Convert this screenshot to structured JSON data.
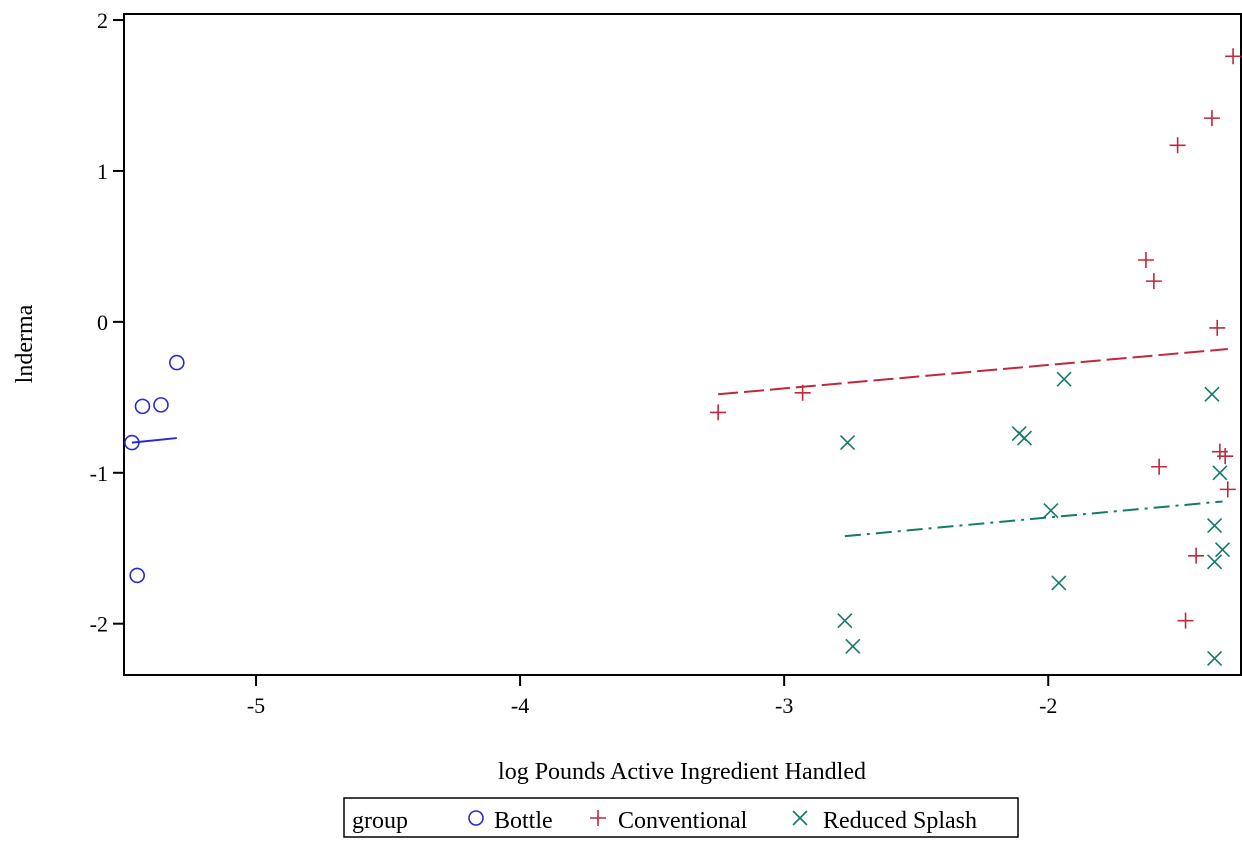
{
  "chart_data": {
    "type": "scatter",
    "title": "",
    "xlabel": "log Pounds Active Ingredient Handled",
    "ylabel": "lnderma",
    "xlim": [
      -5.5,
      -1.27
    ],
    "ylim": [
      -2.34,
      2.04
    ],
    "x_ticks": [
      -5,
      -4,
      -3,
      -2
    ],
    "y_ticks": [
      -2,
      -1,
      0,
      1,
      2
    ],
    "grid": false,
    "legend": {
      "title": "group",
      "placement": "bottom-center",
      "entries": [
        "Bottle",
        "Conventional",
        "Reduced Splash"
      ]
    },
    "series": [
      {
        "name": "Bottle",
        "marker": "circle",
        "color": "#2929d6",
        "points": [
          [
            -5.47,
            -0.8
          ],
          [
            -5.43,
            -0.56
          ],
          [
            -5.36,
            -0.55
          ],
          [
            -5.3,
            -0.27
          ],
          [
            -5.45,
            -1.68
          ]
        ],
        "fit_line": {
          "style": "solid",
          "x": [
            -5.47,
            -5.3
          ],
          "y": [
            -0.8,
            -0.77
          ]
        }
      },
      {
        "name": "Conventional",
        "marker": "plus",
        "color": "#c0283c",
        "points": [
          [
            -3.25,
            -0.6
          ],
          [
            -2.93,
            -0.47
          ],
          [
            -1.63,
            0.41
          ],
          [
            -1.6,
            0.27
          ],
          [
            -1.58,
            -0.96
          ],
          [
            -1.51,
            1.17
          ],
          [
            -1.48,
            -1.98
          ],
          [
            -1.44,
            -1.55
          ],
          [
            -1.38,
            1.35
          ],
          [
            -1.36,
            -0.04
          ],
          [
            -1.35,
            -0.86
          ],
          [
            -1.33,
            -0.89
          ],
          [
            -1.32,
            -1.11
          ],
          [
            -1.3,
            1.76
          ]
        ],
        "fit_line": {
          "style": "dashed",
          "x": [
            -3.25,
            -1.32
          ],
          "y": [
            -0.48,
            -0.18
          ]
        }
      },
      {
        "name": "Reduced Splash",
        "marker": "x",
        "color": "#167a6a",
        "points": [
          [
            -2.76,
            -0.8
          ],
          [
            -2.77,
            -1.98
          ],
          [
            -2.74,
            -2.15
          ],
          [
            -2.11,
            -0.74
          ],
          [
            -2.09,
            -0.77
          ],
          [
            -1.99,
            -1.25
          ],
          [
            -1.96,
            -1.73
          ],
          [
            -1.94,
            -0.38
          ],
          [
            -1.38,
            -0.48
          ],
          [
            -1.37,
            -1.35
          ],
          [
            -1.37,
            -1.59
          ],
          [
            -1.37,
            -2.23
          ],
          [
            -1.35,
            -1.0
          ],
          [
            -1.34,
            -1.51
          ]
        ],
        "fit_line": {
          "style": "dashdot",
          "x": [
            -2.77,
            -1.34
          ],
          "y": [
            -1.42,
            -1.19
          ]
        }
      }
    ]
  }
}
